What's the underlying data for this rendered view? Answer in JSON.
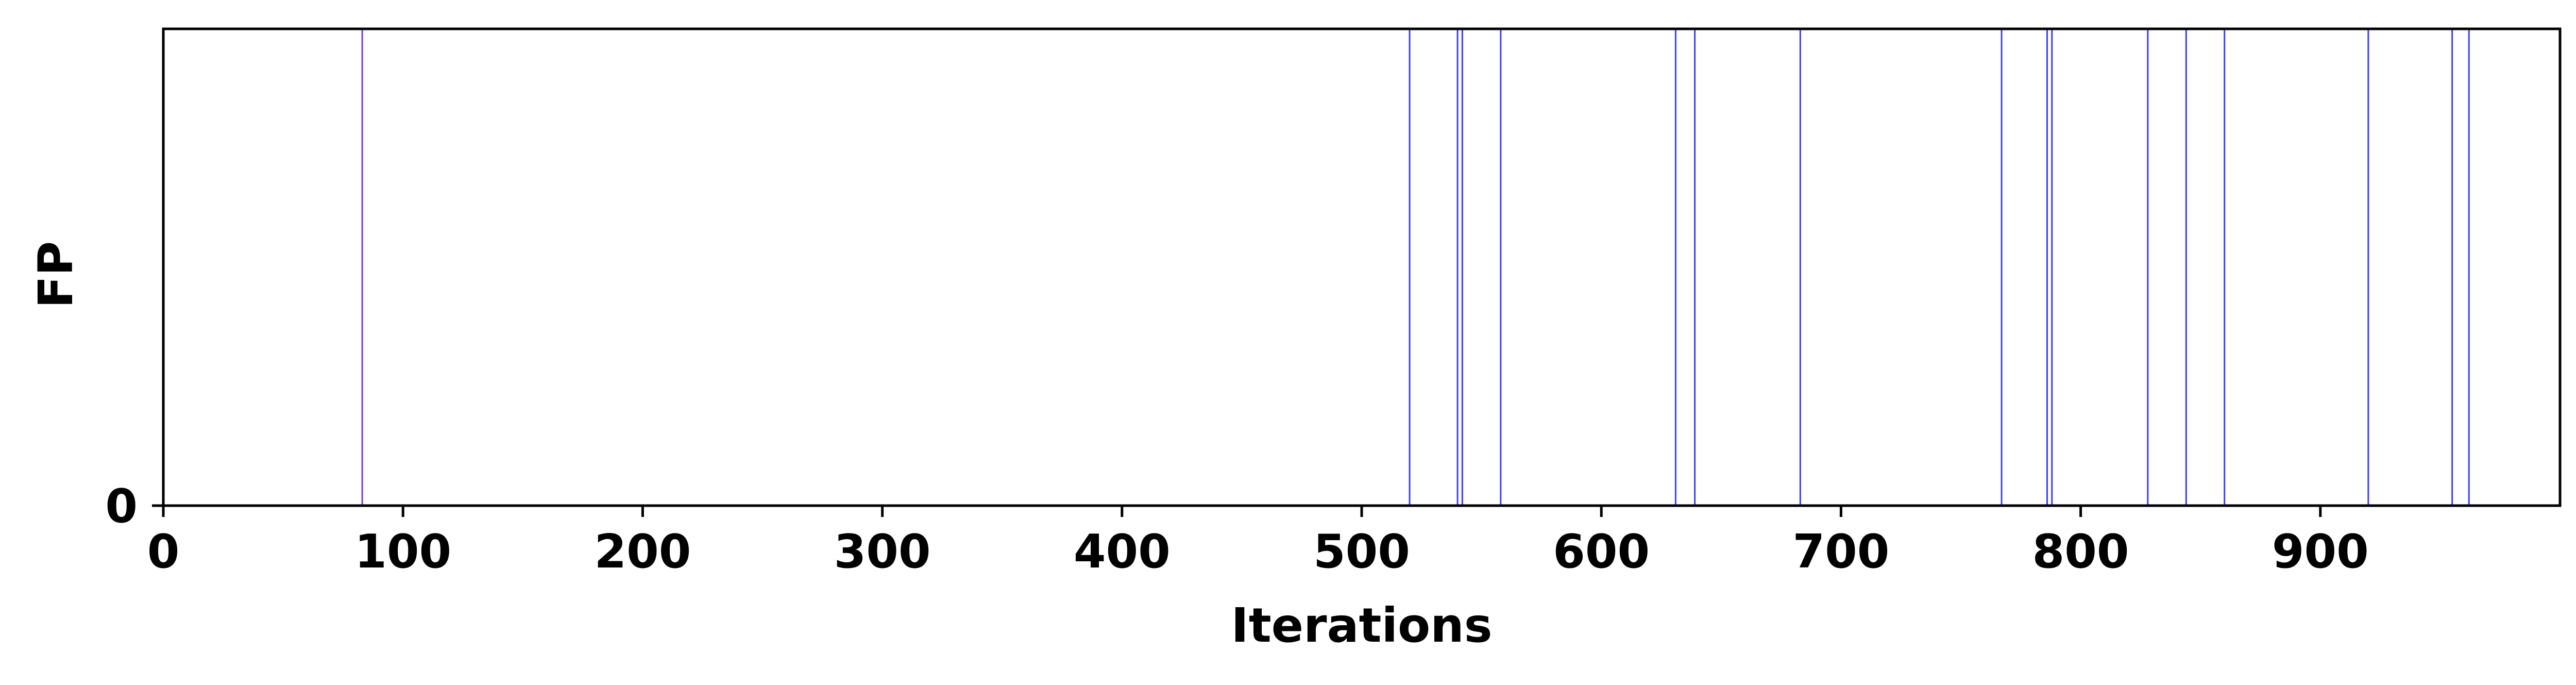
{
  "chart_data": {
    "type": "event",
    "xlabel": "Iterations",
    "ylabel": "FP",
    "xlim": [
      0,
      1000
    ],
    "xticks": [
      0,
      100,
      200,
      300,
      400,
      500,
      600,
      700,
      800,
      900
    ],
    "yticks": [
      0
    ],
    "grid": false,
    "events": [
      83,
      520,
      540,
      542,
      558,
      631,
      639,
      683,
      767,
      786,
      788,
      828,
      844,
      860,
      920,
      955,
      962
    ],
    "line_color": "#3b3bff",
    "first_line_color": "#7a3bd6"
  }
}
